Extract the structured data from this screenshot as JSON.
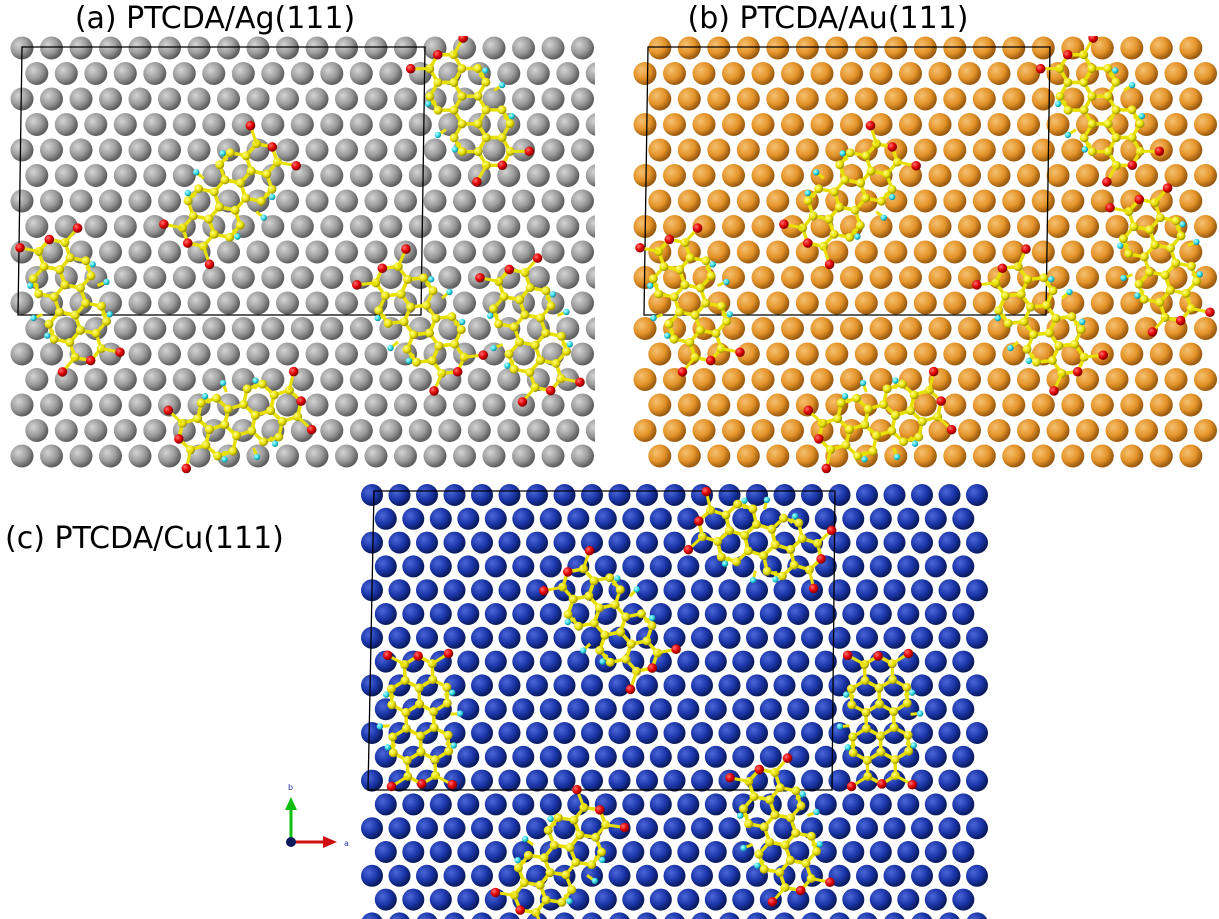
{
  "panels": [
    {
      "label": "(a) PTCDA/Ag(111)"
    },
    {
      "label": "(b) PTCDA/Au(111)"
    },
    {
      "label": "(c) PTCDA/Cu(111)"
    }
  ],
  "axes": {
    "b": "b",
    "a": "a"
  }
}
